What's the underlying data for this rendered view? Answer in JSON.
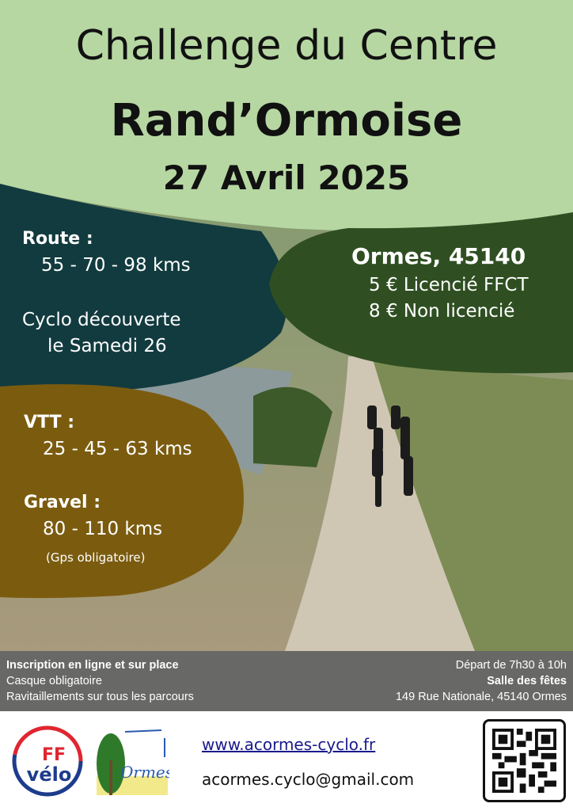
{
  "header": {
    "line1": "Challenge du Centre",
    "line2": "Rand’Ormoise",
    "date": "27 Avril 2025"
  },
  "route": {
    "label": "Route :",
    "distances": "55 - 70 - 98 kms",
    "decouverte1": "Cyclo découverte",
    "decouverte2": "le Samedi 26"
  },
  "location": {
    "place": "Ormes, 45140",
    "price1": "5 € Licencié FFCT",
    "price2": "8 € Non licencié"
  },
  "vtt": {
    "label": "VTT :",
    "distances": "25 - 45 - 63 kms"
  },
  "gravel": {
    "label": "Gravel :",
    "distances": "80 - 110 kms",
    "note": "(Gps obligatoire)"
  },
  "info": {
    "left": [
      "Inscription en ligne et sur place",
      "Casque obligatoire",
      "Ravitaillements sur tous les parcours"
    ],
    "right": [
      "Départ de 7h30 à 10h",
      "Salle des fêtes",
      "149 Rue Nationale, 45140 Ormes"
    ]
  },
  "footer": {
    "website": "www.acormes-cyclo.fr",
    "email": "acormes.cyclo@gmail.com",
    "logo1": "FF vélo",
    "logo2": "Ormes"
  },
  "colors": {
    "header": "#b6d7a2",
    "route": "#123b3f",
    "location": "#2f4f22",
    "vtt": "#7b5c0f",
    "bar": "#686866"
  }
}
